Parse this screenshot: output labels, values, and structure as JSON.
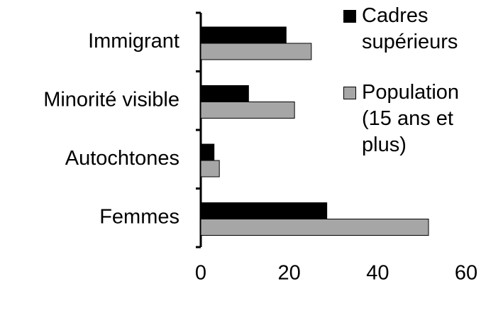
{
  "chart_data": {
    "type": "hbar",
    "categories": [
      "Immigrant",
      "Minorité visible",
      "Autochtones",
      "Femmes"
    ],
    "series": [
      {
        "name": "Cadres supérieurs",
        "color": "#000000",
        "values": [
          19.3,
          10.8,
          3,
          28.5
        ]
      },
      {
        "name": "Population (15 ans et plus)",
        "color": "#a6a6a6",
        "values": [
          25,
          21.2,
          4.2,
          51.5
        ]
      }
    ],
    "xlim": [
      0,
      60
    ],
    "xticks": [
      0,
      20,
      40,
      60
    ],
    "grid": false,
    "legend": "right"
  }
}
